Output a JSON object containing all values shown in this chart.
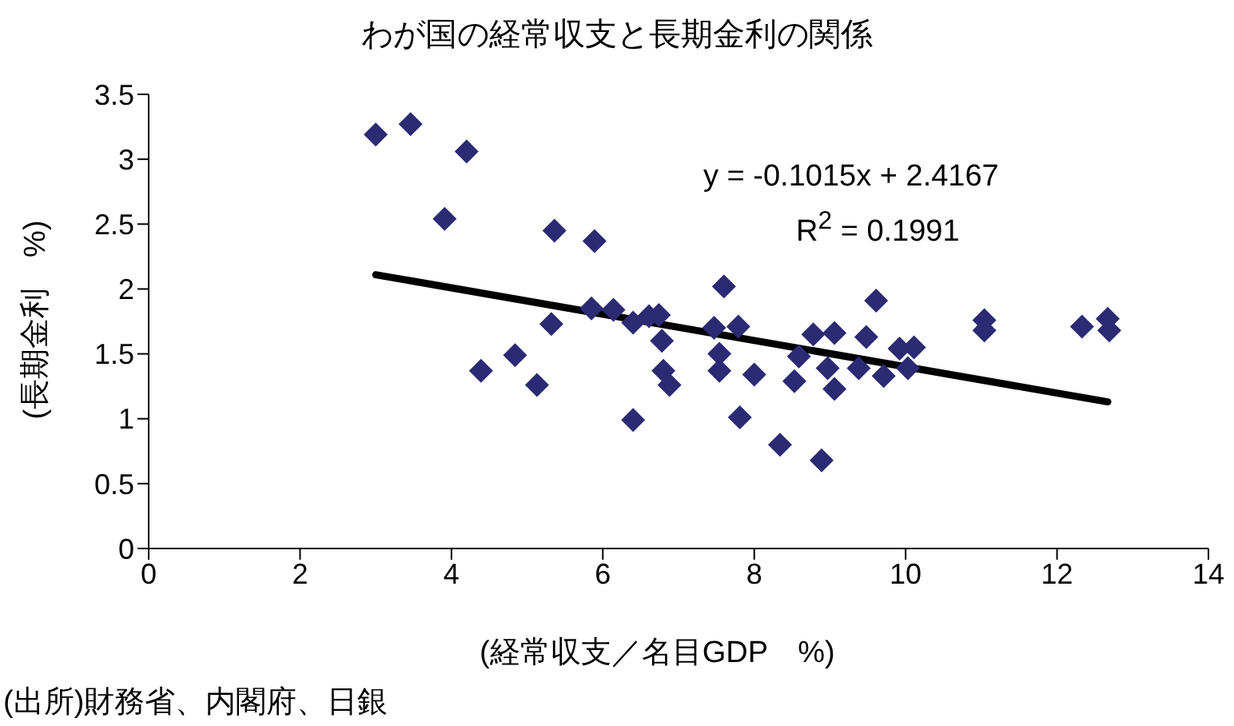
{
  "chart_data": {
    "type": "scatter",
    "title": "わが国の経常収支と長期金利の関係",
    "xlabel": "(経常収支／名目GDP　%)",
    "ylabel": "(長期金利　%)",
    "annotations": [
      "y = -0.1015x + 2.4167",
      "R$^{2}$ = 0.1991",
      "(出所)財務省、内閣府、日銀"
    ],
    "xlim": [
      0,
      14
    ],
    "xticks": [
      0,
      2,
      4,
      6,
      8,
      10,
      12,
      14
    ],
    "ylim": [
      0,
      3.5
    ],
    "yticks": [
      0,
      0.5,
      1,
      1.5,
      2,
      2.5,
      3,
      3.5
    ],
    "grid": false,
    "legend": false,
    "marker": "diamond",
    "series": [
      {
        "color": "#2b2a73",
        "x": [
          3.0,
          3.46,
          4.2,
          3.91,
          4.39,
          4.84,
          5.13,
          5.32,
          5.36,
          5.89,
          5.85,
          6.14,
          6.4,
          6.4,
          6.61,
          6.74,
          6.78,
          6.8,
          6.88,
          7.6,
          7.47,
          7.79,
          7.54,
          7.54,
          8.0,
          7.81,
          8.34,
          8.89,
          8.53,
          8.59,
          8.78,
          9.06,
          8.97,
          9.06,
          9.48,
          9.61,
          9.38,
          9.71,
          9.92,
          10.03,
          10.11,
          11.04,
          11.04,
          12.33,
          12.67,
          12.69
        ],
        "values": [
          3.19,
          3.27,
          3.06,
          2.54,
          1.37,
          1.49,
          1.26,
          1.73,
          2.45,
          2.37,
          1.85,
          1.84,
          0.99,
          1.74,
          1.79,
          1.8,
          1.6,
          1.37,
          1.26,
          2.02,
          1.7,
          1.71,
          1.5,
          1.37,
          1.34,
          1.01,
          0.8,
          0.68,
          1.29,
          1.48,
          1.65,
          1.66,
          1.39,
          1.23,
          1.63,
          1.91,
          1.39,
          1.33,
          1.54,
          1.39,
          1.55,
          1.76,
          1.68,
          1.71,
          1.77,
          1.68
        ]
      },
      {
        "type": "line",
        "color": "#000000",
        "marker": "none",
        "x": [
          3.0,
          12.67
        ],
        "values": [
          2.11,
          1.13
        ]
      }
    ]
  }
}
